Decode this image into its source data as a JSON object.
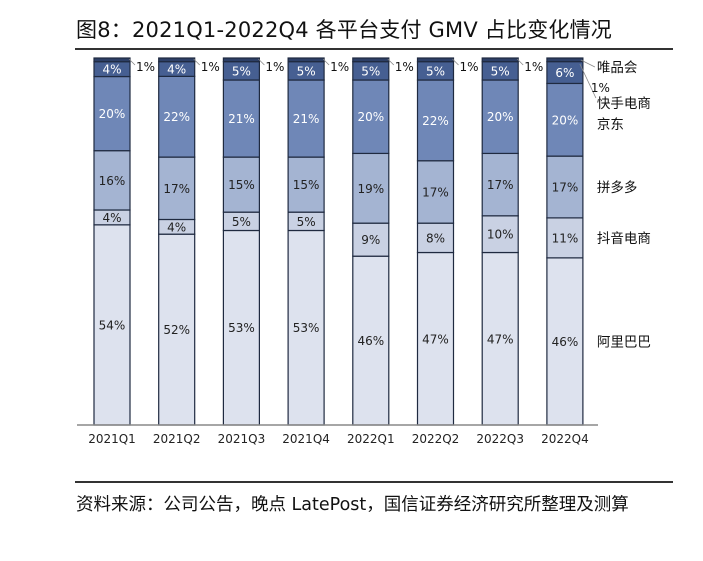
{
  "figure": {
    "title": "图8：2021Q1-2022Q4 各平台支付 GMV 占比变化情况",
    "source": "资料来源：公司公告，晚点 LatePost，国信证券经济研究所整理及测算"
  },
  "chart_data": {
    "type": "bar",
    "stacked": true,
    "normalized": true,
    "title": "2021Q1-2022Q4 各平台支付 GMV 占比变化情况",
    "xlabel": "",
    "ylabel": "",
    "ylim": [
      0,
      100
    ],
    "grid": false,
    "legend_position": "right (labels aligned with segments)",
    "categories": [
      "2021Q1",
      "2021Q2",
      "2021Q3",
      "2021Q4",
      "2022Q1",
      "2022Q2",
      "2022Q3",
      "2022Q4"
    ],
    "series": [
      {
        "name": "阿里巴巴",
        "color": "#dde2ee",
        "label_color": "#222222",
        "values": [
          54,
          52,
          53,
          53,
          46,
          47,
          47,
          46
        ]
      },
      {
        "name": "抖音电商",
        "color": "#c9d1e3",
        "label_color": "#222222",
        "values": [
          4,
          4,
          5,
          5,
          9,
          8,
          10,
          11
        ]
      },
      {
        "name": "拼多多",
        "color": "#a4b4d2",
        "label_color": "#222222",
        "values": [
          16,
          17,
          15,
          15,
          19,
          17,
          17,
          17
        ]
      },
      {
        "name": "京东",
        "color": "#6f87b7",
        "label_color": "#ffffff",
        "values": [
          20,
          22,
          21,
          21,
          20,
          22,
          20,
          20
        ]
      },
      {
        "name": "快手电商",
        "color": "#465f92",
        "label_color": "#ffffff",
        "values": [
          4,
          4,
          5,
          5,
          5,
          5,
          5,
          6
        ]
      },
      {
        "name": "唯品会",
        "color": "#2d3f66",
        "label_color": "#111111",
        "values": [
          1,
          1,
          1,
          1,
          1,
          1,
          1,
          1
        ]
      }
    ],
    "value_suffix": "%",
    "legend": [
      "唯品会",
      "快手电商",
      "京东",
      "拼多多",
      "抖音电商",
      "阿里巴巴"
    ],
    "extra_annotation": "1%"
  }
}
